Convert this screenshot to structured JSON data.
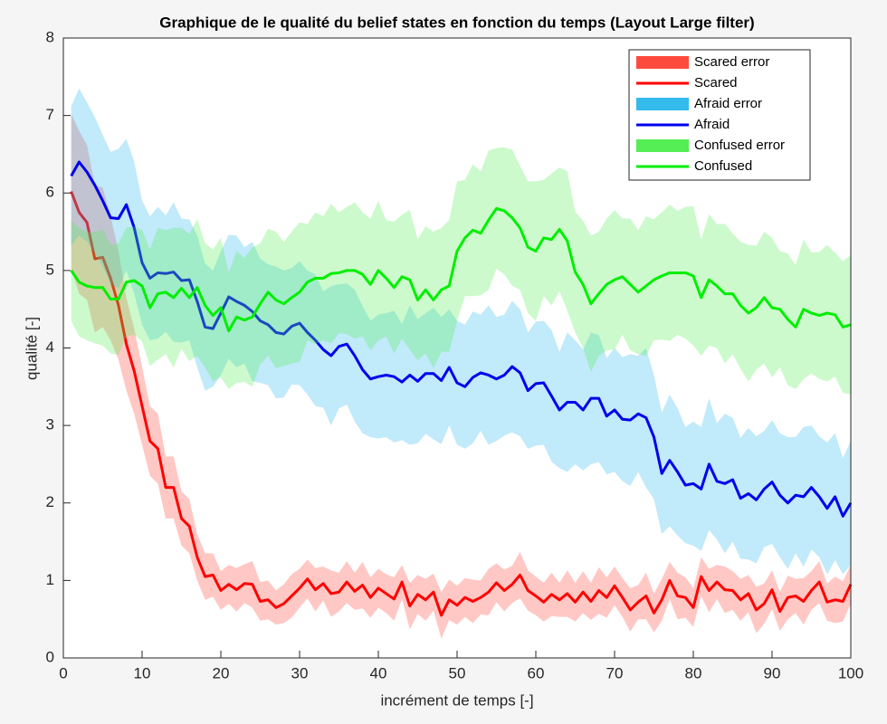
{
  "chart_data": {
    "type": "line",
    "title": "Graphique de le qualité du belief states en fonction du temps (Layout Large filter)",
    "x_label": "incrément de temps [-]",
    "y_label": "qualité [-]",
    "x": [
      1,
      2,
      3,
      4,
      5,
      6,
      7,
      8,
      9,
      10,
      11,
      12,
      13,
      14,
      15,
      16,
      17,
      18,
      19,
      20,
      21,
      22,
      23,
      24,
      25,
      26,
      27,
      28,
      29,
      30,
      31,
      32,
      33,
      34,
      35,
      36,
      37,
      38,
      39,
      40,
      41,
      42,
      43,
      44,
      45,
      46,
      47,
      48,
      49,
      50,
      51,
      52,
      53,
      54,
      55,
      56,
      57,
      58,
      59,
      60,
      61,
      62,
      63,
      64,
      65,
      66,
      67,
      68,
      69,
      70,
      71,
      72,
      73,
      74,
      75,
      76,
      77,
      78,
      79,
      80,
      81,
      82,
      83,
      84,
      85,
      86,
      87,
      88,
      89,
      90,
      91,
      92,
      93,
      94,
      95,
      96,
      97,
      98,
      99,
      100
    ],
    "xlim": [
      0,
      100
    ],
    "xticks": [
      0,
      10,
      20,
      30,
      40,
      50,
      60,
      70,
      80,
      90,
      100
    ],
    "ylim": [
      0,
      8
    ],
    "yticks": [
      0,
      1,
      2,
      3,
      4,
      5,
      6,
      7,
      8
    ],
    "legend": "top-right",
    "series": [
      {
        "name": "Scared",
        "color": "#ff0000",
        "error_name": "Scared error",
        "error_color": "#ff4a3d",
        "values": [
          6.02,
          5.75,
          5.62,
          5.15,
          5.17,
          4.9,
          4.55,
          4.05,
          3.7,
          3.25,
          2.8,
          2.7,
          2.2,
          2.2,
          1.8,
          1.7,
          1.3,
          1.05,
          1.07,
          0.87,
          0.95,
          0.88,
          0.96,
          0.95,
          0.73,
          0.75,
          0.65,
          0.7,
          0.8,
          0.9,
          1.02,
          0.88,
          0.96,
          0.83,
          0.85,
          0.98,
          0.86,
          0.94,
          0.78,
          0.9,
          0.83,
          0.76,
          0.98,
          0.67,
          0.82,
          0.75,
          0.85,
          0.55,
          0.75,
          0.68,
          0.78,
          0.73,
          0.78,
          0.85,
          0.97,
          0.87,
          0.95,
          1.07,
          0.87,
          0.8,
          0.72,
          0.82,
          0.75,
          0.83,
          0.72,
          0.85,
          0.73,
          0.87,
          0.78,
          0.93,
          0.78,
          0.62,
          0.72,
          0.8,
          0.58,
          0.75,
          1.0,
          0.8,
          0.78,
          0.65,
          1.05,
          0.87,
          0.98,
          0.88,
          0.87,
          0.75,
          0.83,
          0.62,
          0.7,
          0.88,
          0.6,
          0.78,
          0.8,
          0.73,
          0.87,
          0.98,
          0.72,
          0.75,
          0.73,
          0.95
        ],
        "error": [
          1.0,
          1.05,
          1.0,
          0.95,
          0.9,
          0.8,
          0.7,
          0.6,
          0.55,
          0.5,
          0.45,
          0.45,
          0.4,
          0.4,
          0.35,
          0.35,
          0.3,
          0.3,
          0.28,
          0.25,
          0.25,
          0.28,
          0.25,
          0.3,
          0.25,
          0.25,
          0.22,
          0.25,
          0.28,
          0.25,
          0.25,
          0.28,
          0.22,
          0.3,
          0.25,
          0.27,
          0.24,
          0.3,
          0.26,
          0.25,
          0.25,
          0.28,
          0.22,
          0.3,
          0.25,
          0.27,
          0.24,
          0.3,
          0.26,
          0.25,
          0.25,
          0.28,
          0.22,
          0.3,
          0.25,
          0.27,
          0.24,
          0.3,
          0.26,
          0.25,
          0.25,
          0.28,
          0.22,
          0.3,
          0.25,
          0.27,
          0.24,
          0.3,
          0.26,
          0.25,
          0.25,
          0.28,
          0.22,
          0.3,
          0.25,
          0.27,
          0.24,
          0.3,
          0.26,
          0.25,
          0.25,
          0.28,
          0.22,
          0.3,
          0.25,
          0.27,
          0.24,
          0.3,
          0.26,
          0.25,
          0.25,
          0.28,
          0.22,
          0.3,
          0.25,
          0.27,
          0.24,
          0.3,
          0.26,
          0.25
        ]
      },
      {
        "name": "Afraid",
        "color": "#0000ee",
        "error_name": "Afraid error",
        "error_color": "#33bbee",
        "values": [
          6.22,
          6.4,
          6.27,
          6.1,
          5.9,
          5.68,
          5.67,
          5.85,
          5.55,
          5.1,
          4.9,
          4.97,
          4.96,
          4.98,
          4.87,
          4.88,
          4.6,
          4.27,
          4.25,
          4.45,
          4.66,
          4.6,
          4.55,
          4.47,
          4.35,
          4.3,
          4.2,
          4.18,
          4.28,
          4.32,
          4.2,
          4.1,
          3.98,
          3.9,
          4.02,
          4.05,
          3.9,
          3.72,
          3.6,
          3.63,
          3.65,
          3.63,
          3.56,
          3.65,
          3.57,
          3.67,
          3.67,
          3.58,
          3.75,
          3.55,
          3.5,
          3.62,
          3.68,
          3.65,
          3.6,
          3.65,
          3.76,
          3.68,
          3.45,
          3.54,
          3.55,
          3.38,
          3.2,
          3.3,
          3.3,
          3.2,
          3.35,
          3.35,
          3.12,
          3.2,
          3.08,
          3.07,
          3.15,
          3.1,
          2.85,
          2.38,
          2.55,
          2.4,
          2.23,
          2.25,
          2.18,
          2.5,
          2.28,
          2.25,
          2.3,
          2.06,
          2.12,
          2.04,
          2.18,
          2.27,
          2.1,
          2.0,
          2.1,
          2.08,
          2.2,
          2.08,
          1.93,
          2.08,
          1.83,
          2.0
        ],
        "error": [
          0.9,
          0.95,
          0.9,
          0.88,
          0.85,
          0.85,
          0.9,
          0.85,
          0.85,
          0.8,
          0.8,
          0.85,
          0.75,
          0.9,
          0.8,
          0.78,
          0.85,
          0.82,
          0.75,
          0.8,
          0.8,
          0.85,
          0.75,
          0.9,
          0.8,
          0.78,
          0.85,
          0.82,
          0.75,
          0.8,
          0.8,
          0.85,
          0.75,
          0.9,
          0.8,
          0.78,
          0.85,
          0.82,
          0.75,
          0.8,
          0.8,
          0.85,
          0.75,
          0.9,
          0.8,
          0.78,
          0.85,
          0.82,
          0.75,
          0.8,
          0.8,
          0.85,
          0.75,
          0.9,
          0.8,
          0.78,
          0.85,
          0.82,
          0.75,
          0.8,
          0.8,
          0.85,
          0.75,
          0.9,
          0.8,
          0.78,
          0.85,
          0.82,
          0.75,
          0.8,
          0.8,
          0.85,
          0.75,
          0.9,
          0.8,
          0.78,
          0.85,
          0.82,
          0.75,
          0.8,
          0.8,
          0.85,
          0.75,
          0.9,
          0.8,
          0.78,
          0.85,
          0.82,
          0.75,
          0.8,
          0.8,
          0.85,
          0.75,
          0.9,
          0.8,
          0.78,
          0.85,
          0.82,
          0.75,
          0.8
        ]
      },
      {
        "name": "Confused",
        "color": "#00ee00",
        "error_name": "Confused error",
        "error_color": "#55ee55",
        "values": [
          5.0,
          4.85,
          4.8,
          4.78,
          4.78,
          4.63,
          4.63,
          4.85,
          4.87,
          4.8,
          4.52,
          4.7,
          4.72,
          4.65,
          4.77,
          4.65,
          4.78,
          4.55,
          4.42,
          4.52,
          4.22,
          4.4,
          4.36,
          4.4,
          4.57,
          4.72,
          4.62,
          4.57,
          4.65,
          4.72,
          4.85,
          4.9,
          4.9,
          4.96,
          4.97,
          5.0,
          5.0,
          4.95,
          4.82,
          5.0,
          4.9,
          4.78,
          4.92,
          4.88,
          4.62,
          4.75,
          4.62,
          4.75,
          4.8,
          5.25,
          5.42,
          5.52,
          5.48,
          5.65,
          5.8,
          5.77,
          5.68,
          5.55,
          5.3,
          5.25,
          5.42,
          5.4,
          5.53,
          5.38,
          4.98,
          4.82,
          4.57,
          4.7,
          4.82,
          4.88,
          4.92,
          4.82,
          4.72,
          4.8,
          4.88,
          4.93,
          4.97,
          4.97,
          4.97,
          4.93,
          4.65,
          4.88,
          4.8,
          4.7,
          4.7,
          4.55,
          4.45,
          4.52,
          4.65,
          4.52,
          4.5,
          4.37,
          4.27,
          4.5,
          4.45,
          4.42,
          4.45,
          4.43,
          4.27,
          4.3
        ],
        "error": [
          0.65,
          0.7,
          0.7,
          0.72,
          0.75,
          0.7,
          0.72,
          0.7,
          0.7,
          0.72,
          0.75,
          0.85,
          0.8,
          0.9,
          0.78,
          0.82,
          0.88,
          0.8,
          0.85,
          0.9,
          0.75,
          0.85,
          0.8,
          0.9,
          0.78,
          0.82,
          0.88,
          0.8,
          0.85,
          0.9,
          0.75,
          0.85,
          0.8,
          0.9,
          0.78,
          0.82,
          0.88,
          0.8,
          0.85,
          0.9,
          0.75,
          0.85,
          0.8,
          0.9,
          0.78,
          0.82,
          0.88,
          0.8,
          0.85,
          0.9,
          0.75,
          0.85,
          0.8,
          0.9,
          0.78,
          0.82,
          0.88,
          0.8,
          0.85,
          0.9,
          0.75,
          0.85,
          0.8,
          0.9,
          0.78,
          0.82,
          0.88,
          0.8,
          0.85,
          0.9,
          0.75,
          0.85,
          0.8,
          0.9,
          0.78,
          0.82,
          0.88,
          0.8,
          0.85,
          0.9,
          0.75,
          0.85,
          0.8,
          0.9,
          0.78,
          0.82,
          0.88,
          0.8,
          0.85,
          0.9,
          0.75,
          0.85,
          0.8,
          0.9,
          0.78,
          0.82,
          0.88,
          0.8,
          0.85,
          0.9
        ]
      }
    ]
  }
}
